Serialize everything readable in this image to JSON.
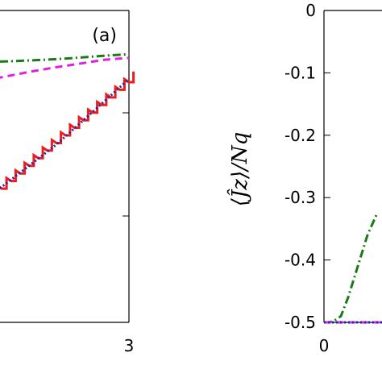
{
  "chart_data": [
    {
      "type": "line",
      "panel_label": "(a)",
      "xlabel": "",
      "ylabel": "",
      "x_ticks": [
        "3"
      ],
      "xlim": [
        0,
        3
      ],
      "series": [
        {
          "style": "green-dashdot",
          "color": "#1a7a1a",
          "x": [
            0,
            0.5,
            1,
            1.5,
            2,
            2.5,
            3
          ],
          "y": [
            0.835,
            0.837,
            0.84,
            0.844,
            0.849,
            0.855,
            0.86
          ]
        },
        {
          "style": "magenta-dashed",
          "color": "#e020e0",
          "x": [
            0,
            0.5,
            1,
            1.5,
            2,
            2.5,
            3
          ],
          "y": [
            0.775,
            0.79,
            0.805,
            0.818,
            0.83,
            0.842,
            0.848
          ]
        },
        {
          "style": "red-staircase",
          "color": "#ee1c1c",
          "x": [
            0,
            0.5,
            1,
            1.5,
            2,
            2.5,
            3
          ],
          "y": [
            0.38,
            0.44,
            0.5,
            0.56,
            0.63,
            0.7,
            0.77
          ]
        },
        {
          "style": "blue-dotted",
          "color": "#1a2aa8",
          "x": [
            0,
            0.5,
            1,
            1.5,
            2,
            2.5,
            3
          ],
          "y": [
            0.39,
            0.45,
            0.51,
            0.57,
            0.64,
            0.71,
            0.78
          ]
        }
      ]
    },
    {
      "type": "line",
      "panel_label": "",
      "xlabel": "",
      "ylabel": "⟨Ĵz⟩/Nq",
      "y_ticks": [
        "0",
        "-0.1",
        "-0.2",
        "-0.3",
        "-0.4",
        "-0.5"
      ],
      "x_ticks": [
        "0"
      ],
      "ylim": [
        -0.5,
        0
      ],
      "series": [
        {
          "style": "green-dashdot",
          "color": "#1a7a1a",
          "x": [
            0,
            0.1,
            0.2,
            0.35,
            0.5,
            0.7,
            0.9,
            1.1
          ],
          "y": [
            -0.5,
            -0.5,
            -0.498,
            -0.49,
            -0.46,
            -0.41,
            -0.36,
            -0.325
          ]
        },
        {
          "style": "magenta-dashed",
          "color": "#e020e0",
          "x": [
            0,
            2
          ],
          "y": [
            -0.5,
            -0.5
          ]
        },
        {
          "style": "blue-dotted",
          "color": "#1a2aa8",
          "x": [
            0,
            2
          ],
          "y": [
            -0.5,
            -0.5
          ]
        }
      ]
    }
  ]
}
